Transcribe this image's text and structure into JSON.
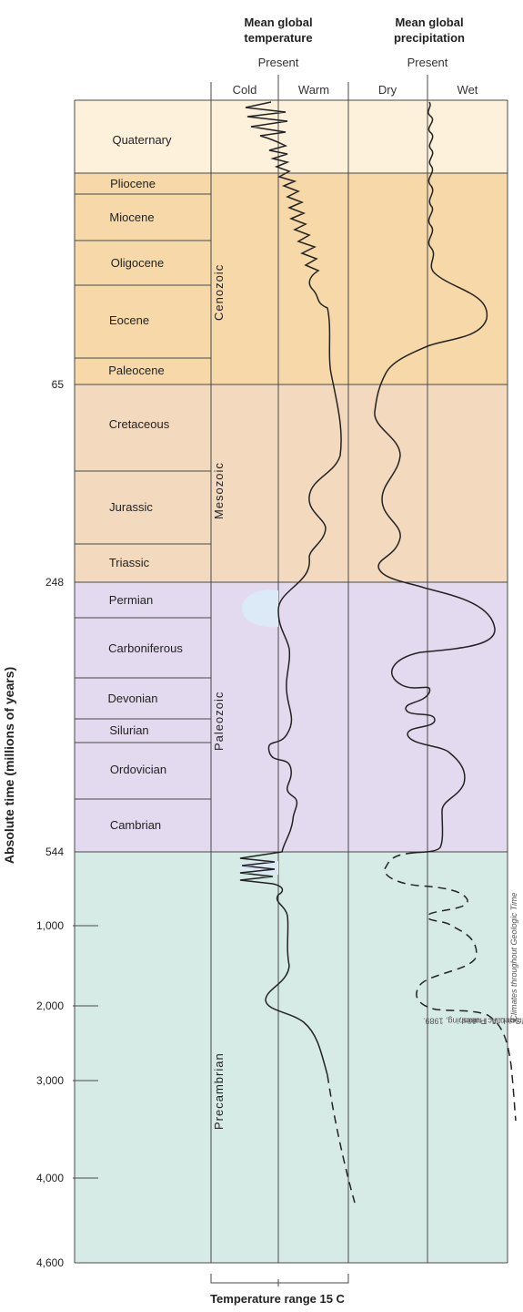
{
  "headers": {
    "temperature": "Mean global temperature",
    "precipitation": "Mean global precipitation",
    "present_temp": "Present",
    "present_precip": "Present",
    "cold": "Cold",
    "warm": "Warm",
    "dry": "Dry",
    "wet": "Wet"
  },
  "y_axis_label": "Absolute time (millions of years)",
  "age_ticks": [
    "65",
    "248",
    "544",
    "1,000",
    "2,000",
    "3,000",
    "4,000",
    "4,600"
  ],
  "eras": [
    {
      "name": "",
      "color": "#fdf1dc"
    },
    {
      "name": "Cenozoic",
      "color": "#f7d9a9"
    },
    {
      "name": "Mesozoic",
      "color": "#f3d9bd"
    },
    {
      "name": "Paleozoic",
      "color": "#e3daf0"
    },
    {
      "name": "Precambrian",
      "color": "#d6ebe6"
    }
  ],
  "periods": [
    "Quaternary",
    "Pliocene",
    "Miocene",
    "Oligocene",
    "Eocene",
    "Paleocene",
    "Cretaceous",
    "Jurassic",
    "Triassic",
    "Permian",
    "Carboniferous",
    "Devonian",
    "Silurian",
    "Ordovician",
    "Cambrian"
  ],
  "footer": "Temperature range 15 C",
  "credit": {
    "prefix": "Redrawn from L. A. Frakes, ",
    "title": "Climates throughout Geologic Time",
    "suffix": ". New York: Elsevier Scientific Publishing, 1989."
  }
}
